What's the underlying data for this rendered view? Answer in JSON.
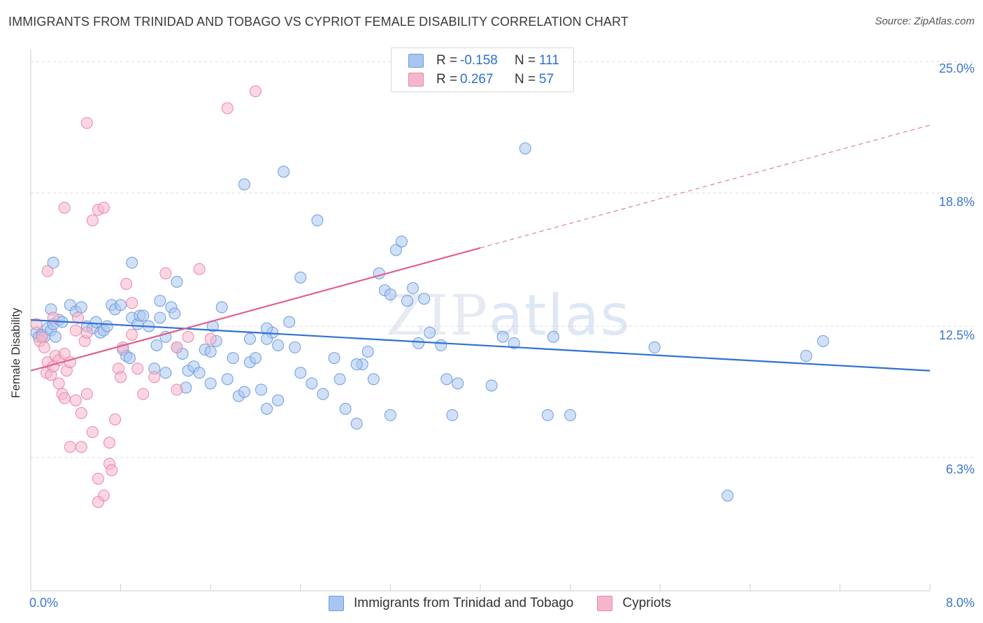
{
  "header": {
    "title": "IMMIGRANTS FROM TRINIDAD AND TOBAGO VS CYPRIOT FEMALE DISABILITY CORRELATION CHART",
    "source": "Source: ZipAtlas.com"
  },
  "watermark": {
    "zip": "ZIP",
    "atlas": "atlas"
  },
  "legend": {
    "rows": [
      {
        "r_label": "R =",
        "r_value": "-0.158",
        "n_label": "N =",
        "n_value": "111"
      },
      {
        "r_label": "R =",
        "r_value": "0.267",
        "n_label": "N =",
        "n_value": "57"
      }
    ]
  },
  "bottom_legend": {
    "items": [
      {
        "label": "Immigrants from Trinidad and Tobago"
      },
      {
        "label": "Cypriots"
      }
    ]
  },
  "colors": {
    "blue_fill": "#a9c6f0",
    "blue_stroke": "#6f9be0",
    "blue_line": "#2e72d2",
    "pink_fill": "#f5b6cb",
    "pink_stroke": "#ea86a8",
    "pink_line": "#e0608c",
    "grid": "#dcdcdc",
    "tick_text": "#3a76cc"
  },
  "chart_data": {
    "type": "scatter",
    "title": "IMMIGRANTS FROM TRINIDAD AND TOBAGO VS CYPRIOT FEMALE DISABILITY CORRELATION CHART",
    "xlabel": "",
    "ylabel": "Female Disability",
    "xlim": [
      0,
      8
    ],
    "ylim": [
      0,
      25.6
    ],
    "x_tick_labels": [
      "0.0%",
      "8.0%"
    ],
    "y_ticks": [
      6.3,
      12.5,
      18.8,
      25.0
    ],
    "y_tick_labels": [
      "6.3%",
      "12.5%",
      "18.8%",
      "25.0%"
    ],
    "series": [
      {
        "name": "Immigrants from Trinidad and Tobago",
        "color": "blue",
        "points": [
          [
            0.05,
            12.2
          ],
          [
            0.07,
            12.0
          ],
          [
            0.1,
            12.1
          ],
          [
            0.12,
            12.0
          ],
          [
            0.15,
            12.4
          ],
          [
            0.18,
            12.3
          ],
          [
            0.2,
            12.6
          ],
          [
            0.22,
            12.0
          ],
          [
            0.25,
            12.8
          ],
          [
            0.28,
            12.7
          ],
          [
            0.18,
            13.3
          ],
          [
            0.35,
            13.5
          ],
          [
            0.4,
            13.2
          ],
          [
            0.45,
            13.4
          ],
          [
            0.5,
            12.5
          ],
          [
            0.55,
            12.4
          ],
          [
            0.58,
            12.7
          ],
          [
            0.62,
            12.2
          ],
          [
            0.65,
            12.3
          ],
          [
            0.68,
            12.5
          ],
          [
            0.72,
            13.5
          ],
          [
            0.75,
            13.3
          ],
          [
            0.8,
            13.5
          ],
          [
            0.82,
            11.4
          ],
          [
            0.85,
            11.1
          ],
          [
            0.88,
            11.0
          ],
          [
            0.9,
            12.9
          ],
          [
            0.95,
            12.6
          ],
          [
            0.97,
            13.0
          ],
          [
            1.0,
            13.0
          ],
          [
            1.05,
            12.5
          ],
          [
            1.1,
            10.5
          ],
          [
            1.12,
            11.6
          ],
          [
            1.15,
            12.9
          ],
          [
            1.2,
            10.3
          ],
          [
            1.25,
            13.4
          ],
          [
            1.28,
            13.1
          ],
          [
            1.3,
            11.5
          ],
          [
            1.35,
            11.2
          ],
          [
            1.38,
            9.6
          ],
          [
            1.4,
            10.4
          ],
          [
            1.45,
            10.6
          ],
          [
            1.5,
            10.3
          ],
          [
            1.55,
            11.4
          ],
          [
            1.6,
            9.8
          ],
          [
            1.62,
            12.5
          ],
          [
            1.65,
            11.8
          ],
          [
            1.7,
            13.4
          ],
          [
            1.75,
            10.0
          ],
          [
            1.8,
            11.0
          ],
          [
            1.85,
            9.2
          ],
          [
            1.9,
            9.4
          ],
          [
            1.95,
            10.8
          ],
          [
            2.0,
            11.0
          ],
          [
            2.05,
            9.5
          ],
          [
            2.1,
            8.6
          ],
          [
            2.15,
            12.2
          ],
          [
            2.2,
            9.0
          ],
          [
            2.3,
            12.7
          ],
          [
            2.35,
            11.5
          ],
          [
            2.4,
            10.3
          ],
          [
            2.5,
            9.8
          ],
          [
            2.6,
            9.3
          ],
          [
            2.7,
            11.0
          ],
          [
            2.75,
            10.0
          ],
          [
            2.8,
            8.6
          ],
          [
            2.9,
            7.9
          ],
          [
            2.95,
            10.7
          ],
          [
            3.0,
            11.3
          ],
          [
            3.05,
            10.0
          ],
          [
            3.1,
            15.0
          ],
          [
            3.15,
            14.2
          ],
          [
            3.2,
            14.0
          ],
          [
            3.25,
            16.1
          ],
          [
            3.3,
            16.5
          ],
          [
            3.35,
            13.7
          ],
          [
            3.4,
            14.3
          ],
          [
            3.45,
            11.7
          ],
          [
            3.5,
            13.8
          ],
          [
            3.55,
            12.2
          ],
          [
            3.65,
            11.6
          ],
          [
            3.7,
            10.0
          ],
          [
            3.75,
            8.3
          ],
          [
            3.8,
            9.8
          ],
          [
            4.2,
            12.0
          ],
          [
            4.3,
            11.7
          ],
          [
            4.4,
            20.9
          ],
          [
            4.6,
            8.3
          ],
          [
            4.65,
            12.0
          ],
          [
            4.8,
            8.3
          ],
          [
            0.2,
            15.5
          ],
          [
            0.9,
            15.5
          ],
          [
            1.15,
            13.7
          ],
          [
            1.2,
            12.0
          ],
          [
            1.3,
            14.6
          ],
          [
            1.6,
            11.3
          ],
          [
            1.95,
            11.9
          ],
          [
            2.1,
            11.9
          ],
          [
            2.4,
            14.8
          ],
          [
            2.9,
            10.7
          ],
          [
            3.2,
            8.3
          ],
          [
            4.1,
            9.7
          ],
          [
            2.1,
            12.4
          ],
          [
            2.2,
            11.6
          ],
          [
            1.9,
            19.2
          ],
          [
            2.25,
            19.8
          ],
          [
            2.55,
            17.5
          ],
          [
            6.2,
            4.5
          ],
          [
            6.9,
            11.1
          ],
          [
            7.05,
            11.8
          ],
          [
            5.55,
            11.5
          ]
        ]
      },
      {
        "name": "Cypriots",
        "color": "pink",
        "points": [
          [
            0.05,
            12.6
          ],
          [
            0.08,
            11.8
          ],
          [
            0.1,
            12.0
          ],
          [
            0.12,
            11.5
          ],
          [
            0.14,
            10.3
          ],
          [
            0.15,
            10.8
          ],
          [
            0.18,
            10.2
          ],
          [
            0.2,
            12.9
          ],
          [
            0.22,
            11.1
          ],
          [
            0.25,
            10.9
          ],
          [
            0.28,
            9.3
          ],
          [
            0.3,
            9.1
          ],
          [
            0.32,
            10.4
          ],
          [
            0.35,
            10.8
          ],
          [
            0.4,
            12.3
          ],
          [
            0.42,
            12.9
          ],
          [
            0.45,
            8.4
          ],
          [
            0.48,
            11.8
          ],
          [
            0.5,
            12.2
          ],
          [
            0.55,
            7.5
          ],
          [
            0.6,
            5.3
          ],
          [
            0.65,
            4.5
          ],
          [
            0.7,
            6.0
          ],
          [
            0.72,
            5.7
          ],
          [
            0.75,
            8.1
          ],
          [
            0.78,
            10.5
          ],
          [
            0.8,
            10.1
          ],
          [
            0.82,
            11.5
          ],
          [
            0.85,
            14.5
          ],
          [
            0.9,
            13.6
          ],
          [
            0.95,
            10.5
          ],
          [
            1.0,
            9.3
          ],
          [
            1.1,
            10.1
          ],
          [
            1.2,
            15.0
          ],
          [
            1.3,
            11.5
          ],
          [
            1.4,
            12.0
          ],
          [
            1.5,
            15.2
          ],
          [
            1.6,
            11.9
          ],
          [
            1.75,
            22.8
          ],
          [
            2.0,
            23.6
          ],
          [
            0.15,
            15.1
          ],
          [
            0.3,
            18.1
          ],
          [
            0.55,
            17.5
          ],
          [
            0.6,
            18.0
          ],
          [
            0.65,
            18.1
          ],
          [
            0.5,
            22.1
          ],
          [
            0.35,
            6.8
          ],
          [
            0.4,
            9.0
          ],
          [
            0.2,
            10.6
          ],
          [
            0.25,
            9.8
          ],
          [
            0.45,
            6.8
          ],
          [
            0.7,
            7.0
          ],
          [
            0.3,
            11.2
          ],
          [
            0.5,
            9.3
          ],
          [
            0.6,
            4.2
          ],
          [
            1.3,
            9.5
          ],
          [
            0.9,
            12.1
          ]
        ]
      }
    ],
    "trend_lines": [
      {
        "series": "Immigrants from Trinidad and Tobago",
        "from": [
          0.0,
          12.8
        ],
        "to": [
          8.0,
          10.4
        ],
        "style": "solid"
      },
      {
        "series": "Cypriots",
        "from": [
          0.0,
          10.4
        ],
        "to": [
          4.0,
          16.2
        ],
        "style": "solid"
      },
      {
        "series": "Cypriots",
        "from": [
          4.0,
          16.2
        ],
        "to": [
          8.0,
          22.0
        ],
        "style": "dashed"
      }
    ]
  }
}
